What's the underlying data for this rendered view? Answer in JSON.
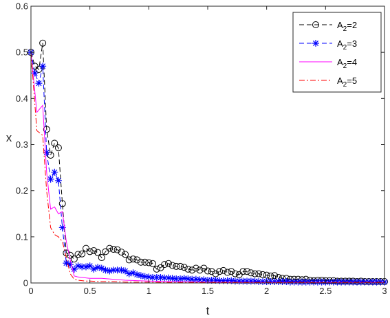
{
  "chart_data": {
    "type": "line",
    "title": "",
    "xlabel": "t",
    "ylabel": "x",
    "xlim": [
      0,
      3
    ],
    "ylim": [
      0,
      0.6
    ],
    "xticks": [
      "0",
      "0.5",
      "1",
      "1.5",
      "2",
      "2.5",
      "3"
    ],
    "yticks": [
      "0",
      "0.1",
      "0.2",
      "0.3",
      "0.4",
      "0.5",
      "0.6"
    ],
    "grid": false,
    "legend_position": "top-right",
    "series": [
      {
        "name": "A2=2",
        "legend_base": "A",
        "legend_sub": "2",
        "legend_rest": "=2",
        "color": "#000000",
        "line_style": "dashed",
        "marker": "circle",
        "x": [
          0,
          0.033,
          0.067,
          0.1,
          0.133,
          0.167,
          0.2,
          0.233,
          0.267,
          0.3,
          0.333,
          0.367,
          0.4,
          0.433,
          0.467,
          0.5,
          0.533,
          0.567,
          0.6,
          0.633,
          0.667,
          0.7,
          0.733,
          0.767,
          0.8,
          0.833,
          0.867,
          0.9,
          0.933,
          0.967,
          1.0,
          1.033,
          1.067,
          1.1,
          1.133,
          1.167,
          1.2,
          1.233,
          1.267,
          1.3,
          1.333,
          1.367,
          1.4,
          1.433,
          1.467,
          1.5,
          1.533,
          1.567,
          1.6,
          1.633,
          1.667,
          1.7,
          1.733,
          1.767,
          1.8,
          1.833,
          1.867,
          1.9,
          1.933,
          1.967,
          2.0,
          2.033,
          2.067,
          2.1,
          2.133,
          2.167,
          2.2,
          2.233,
          2.267,
          2.3,
          2.333,
          2.367,
          2.4,
          2.433,
          2.467,
          2.5,
          2.533,
          2.567,
          2.6,
          2.633,
          2.667,
          2.7,
          2.733,
          2.767,
          2.8,
          2.833,
          2.867,
          2.9,
          2.933,
          2.967,
          3.0
        ],
        "y": [
          0.5,
          0.47,
          0.463,
          0.52,
          0.333,
          0.277,
          0.303,
          0.293,
          0.172,
          0.065,
          0.06,
          0.052,
          0.062,
          0.063,
          0.075,
          0.068,
          0.07,
          0.066,
          0.055,
          0.068,
          0.075,
          0.073,
          0.072,
          0.067,
          0.062,
          0.05,
          0.052,
          0.05,
          0.045,
          0.045,
          0.044,
          0.042,
          0.03,
          0.033,
          0.04,
          0.042,
          0.038,
          0.036,
          0.036,
          0.034,
          0.03,
          0.028,
          0.032,
          0.028,
          0.032,
          0.026,
          0.025,
          0.02,
          0.025,
          0.027,
          0.023,
          0.025,
          0.02,
          0.018,
          0.025,
          0.025,
          0.022,
          0.02,
          0.02,
          0.018,
          0.017,
          0.015,
          0.016,
          0.012,
          0.01,
          0.01,
          0.008,
          0.008,
          0.008,
          0.007,
          0.008,
          0.006,
          0.005,
          0.006,
          0.006,
          0.005,
          0.005,
          0.005,
          0.004,
          0.004,
          0.004,
          0.004,
          0.004,
          0.003,
          0.004,
          0.003,
          0.003,
          0.003,
          0.003,
          0.003,
          0.003
        ]
      },
      {
        "name": "A2=3",
        "legend_base": "A",
        "legend_sub": "2",
        "legend_rest": "=3",
        "color": "#0000ff",
        "line_style": "dashed",
        "marker": "asterisk",
        "x": [
          0,
          0.033,
          0.067,
          0.1,
          0.133,
          0.167,
          0.2,
          0.233,
          0.267,
          0.3,
          0.333,
          0.367,
          0.4,
          0.433,
          0.467,
          0.5,
          0.533,
          0.567,
          0.6,
          0.633,
          0.667,
          0.7,
          0.733,
          0.767,
          0.8,
          0.833,
          0.867,
          0.9,
          0.933,
          0.967,
          1.0,
          1.033,
          1.067,
          1.1,
          1.133,
          1.167,
          1.2,
          1.233,
          1.267,
          1.3,
          1.333,
          1.367,
          1.4,
          1.433,
          1.467,
          1.5,
          1.533,
          1.567,
          1.6,
          1.633,
          1.667,
          1.7,
          1.733,
          1.767,
          1.8,
          1.833,
          1.867,
          1.9,
          1.933,
          1.967,
          2.0,
          2.033,
          2.067,
          2.1,
          2.133,
          2.167,
          2.2,
          2.233,
          2.267,
          2.3,
          2.333,
          2.367,
          2.4,
          2.433,
          2.467,
          2.5,
          2.533,
          2.567,
          2.6,
          2.633,
          2.667,
          2.7,
          2.733,
          2.767,
          2.8,
          2.833,
          2.867,
          2.9,
          2.933,
          2.967,
          3.0
        ],
        "y": [
          0.5,
          0.455,
          0.433,
          0.47,
          0.283,
          0.225,
          0.24,
          0.222,
          0.12,
          0.043,
          0.04,
          0.03,
          0.037,
          0.035,
          0.035,
          0.037,
          0.03,
          0.034,
          0.032,
          0.028,
          0.026,
          0.028,
          0.028,
          0.028,
          0.026,
          0.02,
          0.022,
          0.018,
          0.016,
          0.014,
          0.013,
          0.012,
          0.012,
          0.012,
          0.011,
          0.011,
          0.01,
          0.009,
          0.009,
          0.01,
          0.009,
          0.008,
          0.008,
          0.007,
          0.007,
          0.006,
          0.006,
          0.006,
          0.005,
          0.005,
          0.005,
          0.005,
          0.004,
          0.004,
          0.004,
          0.004,
          0.004,
          0.004,
          0.003,
          0.003,
          0.003,
          0.003,
          0.003,
          0.003,
          0.003,
          0.003,
          0.002,
          0.002,
          0.002,
          0.002,
          0.002,
          0.002,
          0.002,
          0.002,
          0.002,
          0.002,
          0.002,
          0.002,
          0.002,
          0.002,
          0.002,
          0.002,
          0.002,
          0.002,
          0.002,
          0.002,
          0.002,
          0.002,
          0.002,
          0.002,
          0.002
        ]
      },
      {
        "name": "A2=4",
        "legend_base": "A",
        "legend_sub": "2",
        "legend_rest": "=4",
        "color": "#ff00ff",
        "line_style": "solid",
        "marker": "none",
        "x": [
          0,
          0.05,
          0.1,
          0.133,
          0.167,
          0.2,
          0.233,
          0.267,
          0.3,
          0.333,
          0.367,
          0.4,
          0.433,
          0.467,
          0.5,
          0.6,
          0.7,
          0.8,
          0.9,
          1.0,
          1.2,
          1.5,
          2.0,
          2.5,
          3.0
        ],
        "y": [
          0.5,
          0.37,
          0.385,
          0.24,
          0.16,
          0.165,
          0.15,
          0.155,
          0.09,
          0.05,
          0.015,
          0.013,
          0.012,
          0.011,
          0.01,
          0.01,
          0.008,
          0.006,
          0.005,
          0.004,
          0.003,
          0.002,
          0.001,
          0.001,
          0.001
        ]
      },
      {
        "name": "A2=5",
        "legend_base": "A",
        "legend_sub": "2",
        "legend_rest": "=5",
        "color": "#ff0000",
        "line_style": "dashdot",
        "marker": "none",
        "x": [
          0,
          0.05,
          0.1,
          0.133,
          0.167,
          0.2,
          0.233,
          0.267,
          0.3,
          0.333,
          0.367,
          0.4,
          0.433,
          0.467,
          0.5,
          0.6,
          0.7,
          0.8,
          0.9,
          1.0,
          1.2,
          1.5,
          2.0,
          2.5,
          3.0
        ],
        "y": [
          0.5,
          0.33,
          0.32,
          0.2,
          0.12,
          0.105,
          0.1,
          0.09,
          0.055,
          0.02,
          0.008,
          0.006,
          0.005,
          0.004,
          0.004,
          0.003,
          0.003,
          0.002,
          0.002,
          0.002,
          0.001,
          0.001,
          0.001,
          0.001,
          0.001
        ]
      }
    ]
  }
}
